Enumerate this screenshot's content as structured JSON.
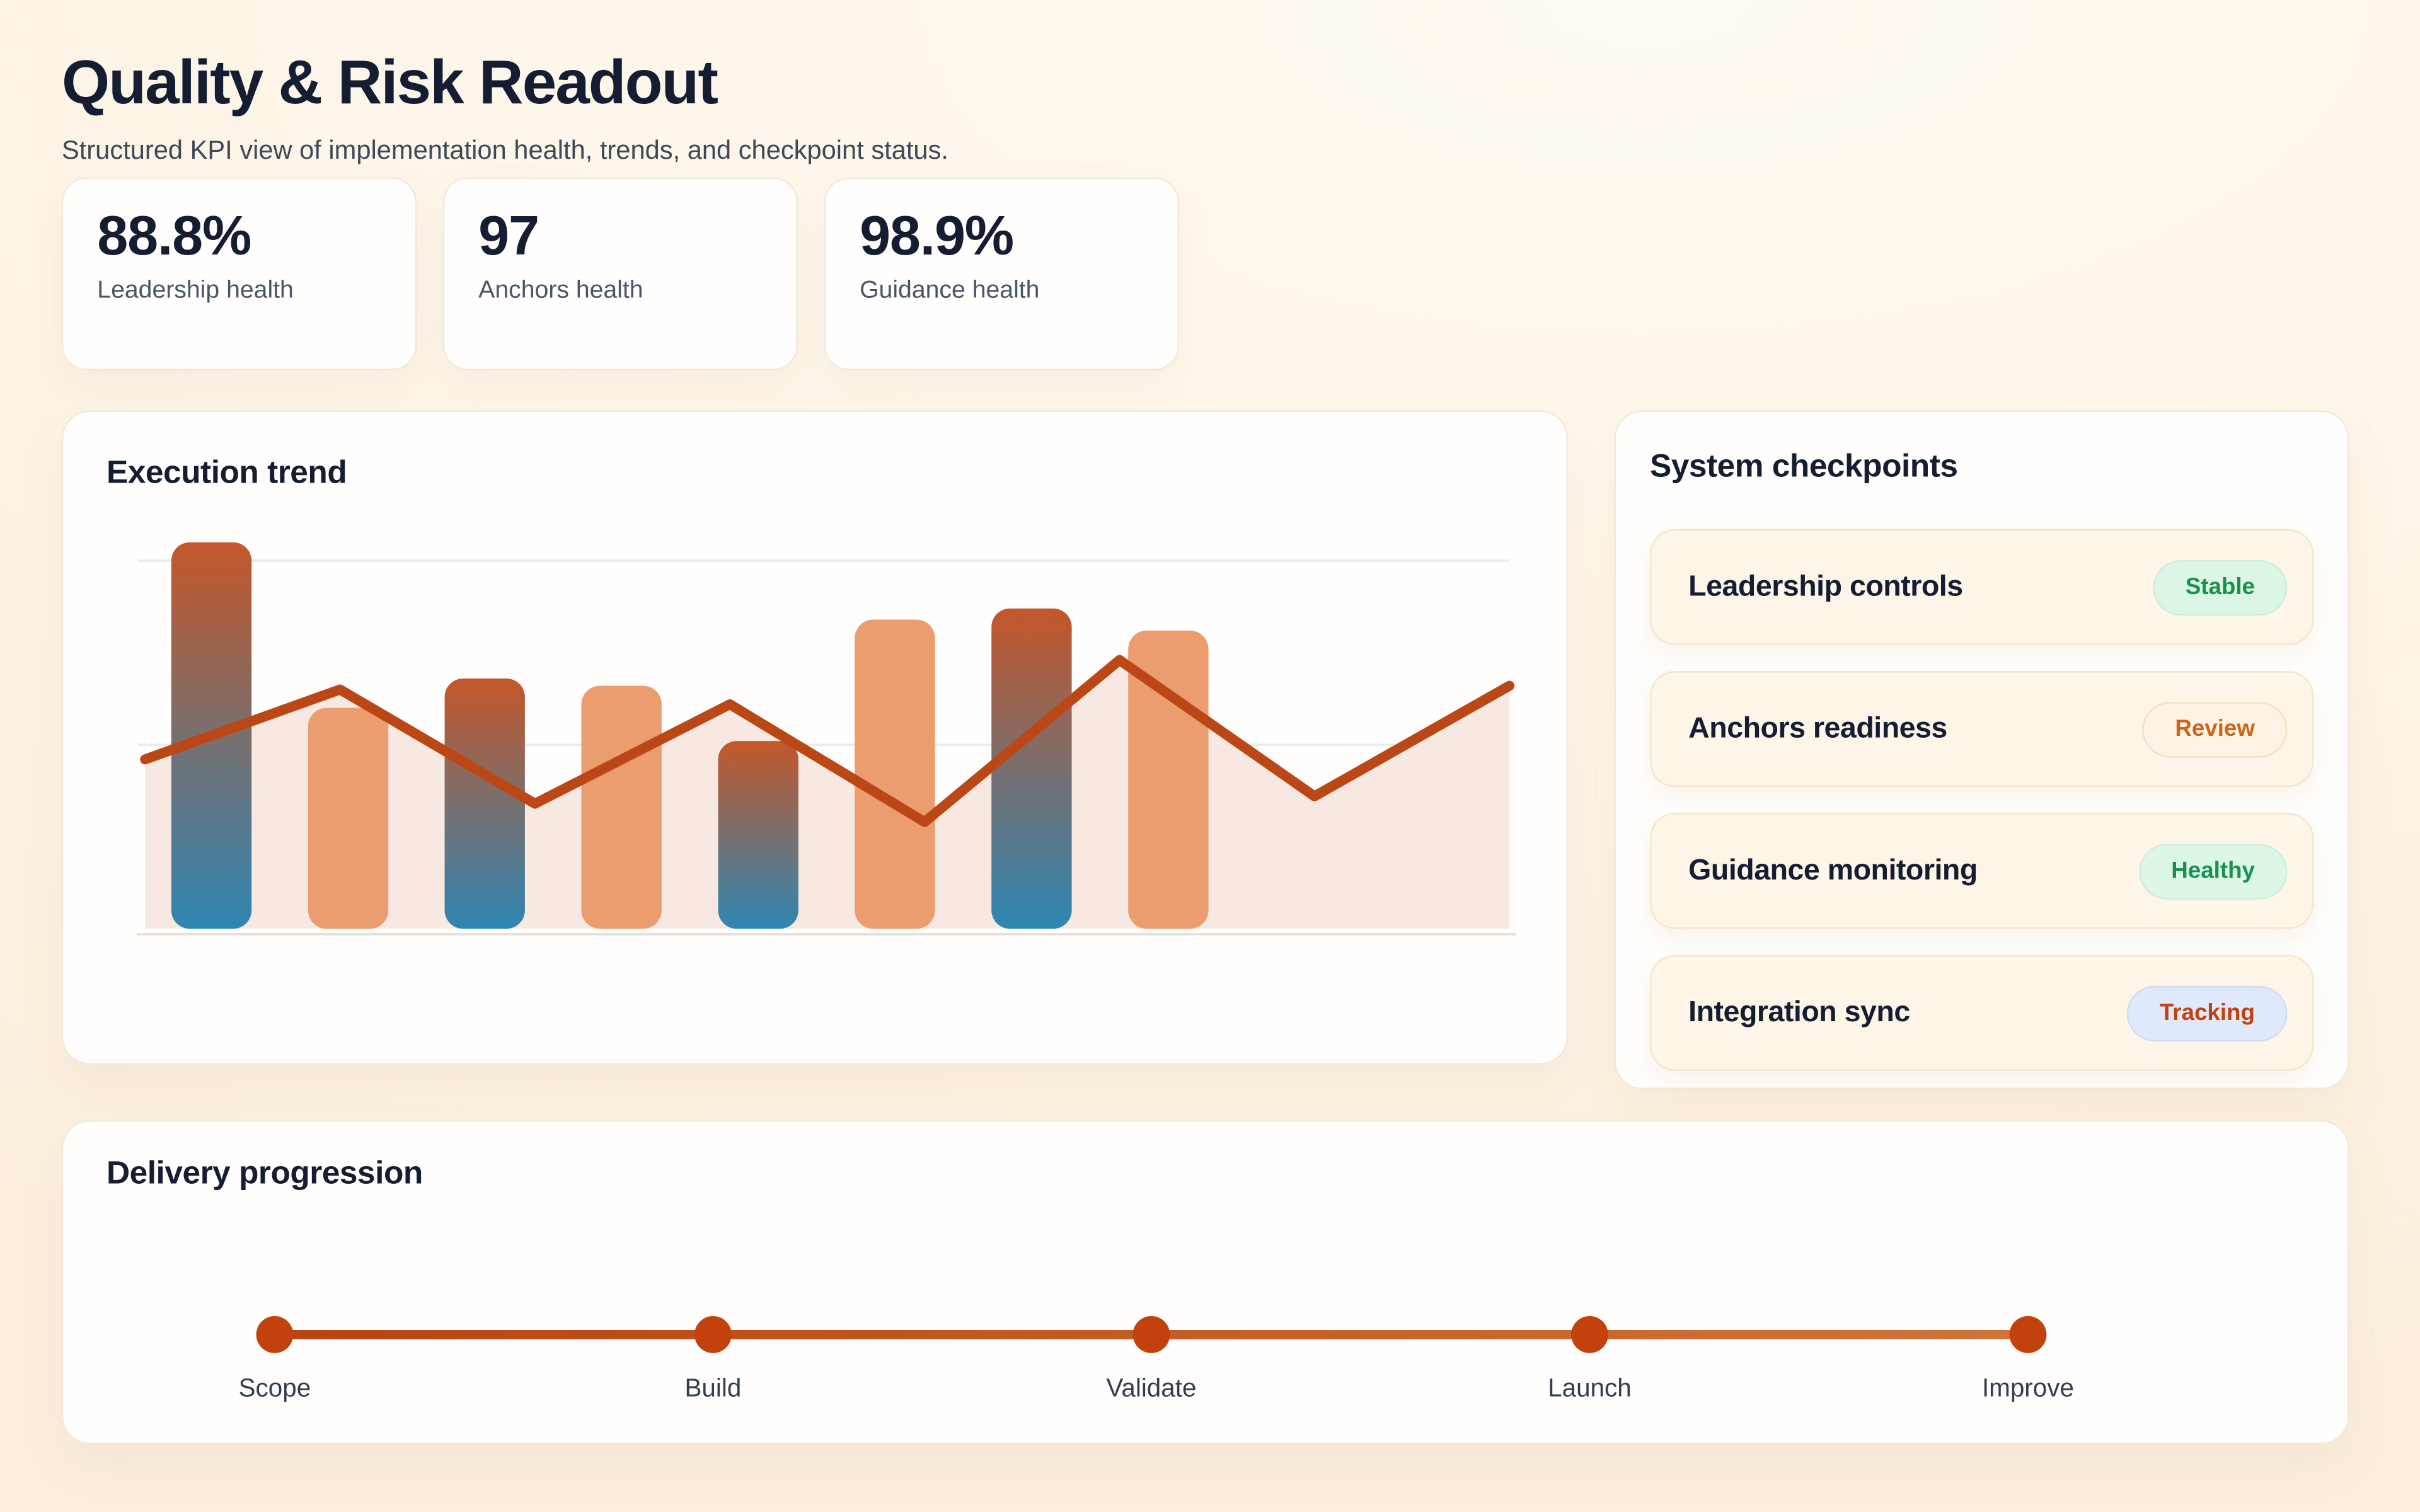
{
  "page": {
    "title": "Quality & Risk Readout",
    "subtitle": "Structured KPI view of implementation health, trends, and checkpoint status."
  },
  "kpis": [
    {
      "value": "88.8%",
      "label": "Leadership health"
    },
    {
      "value": "97",
      "label": "Anchors health"
    },
    {
      "value": "98.9%",
      "label": "Guidance health"
    }
  ],
  "execution_trend": {
    "title": "Execution trend"
  },
  "chart_data": {
    "type": "combo",
    "title": "Execution trend",
    "xlabel": "",
    "ylabel": "",
    "x_tick_labels_visible": false,
    "y_tick_labels_visible": false,
    "legend": false,
    "grid": "horizontal",
    "gridline_values": [
      50,
      100
    ],
    "ylim": [
      0,
      112
    ],
    "points": 8,
    "series": [
      {
        "name": "volume-bars",
        "type": "bar",
        "values": [
          105,
          60,
          68,
          66,
          51,
          84,
          87,
          81
        ],
        "style_note": "odd bars vertical gradient orange-to-blue, even bars solid light orange"
      },
      {
        "name": "trend-line",
        "type": "line",
        "values": [
          46,
          65,
          34,
          61,
          29,
          73,
          36,
          66
        ],
        "style_note": "solid burnt-orange line with pale peach area fill to baseline"
      }
    ],
    "colors": {
      "bar_gradient_top": "#c4572a",
      "bar_gradient_bottom": "#2e86b2",
      "bar_solid": "#ec9d70",
      "line": "#bc4716",
      "area_fill": "#f7e9e1",
      "gridline": "#ececee",
      "baseline": "#e6e1d8"
    }
  },
  "checkpoints": {
    "title": "System checkpoints",
    "items": [
      {
        "label": "Leadership controls",
        "status": "Stable",
        "badge": {
          "bg": "#dcf5e4",
          "text": "#18914e",
          "border": "#cdeedb"
        }
      },
      {
        "label": "Anchors readiness",
        "status": "Review",
        "badge": {
          "bg": "#fdf3e4",
          "text": "#cf6417",
          "border": "#f3e0c3"
        }
      },
      {
        "label": "Guidance monitoring",
        "status": "Healthy",
        "badge": {
          "bg": "#dcf7e6",
          "text": "#18914e",
          "border": "#cdeedb"
        }
      },
      {
        "label": "Integration sync",
        "status": "Tracking",
        "badge": {
          "bg": "#dfe9fb",
          "text": "#c2410c",
          "border": "#cfdcf4"
        }
      }
    ]
  },
  "delivery": {
    "title": "Delivery progression",
    "milestones": [
      "Scope",
      "Build",
      "Validate",
      "Launch",
      "Improve"
    ]
  },
  "colors": {
    "accent": "#bc4712",
    "timeline_line_start": "#b8430f",
    "timeline_line_end": "#d0743a",
    "timeline_dot": "#c2410c",
    "ink": "#141d31",
    "page_bg": "#fdf4e7"
  }
}
